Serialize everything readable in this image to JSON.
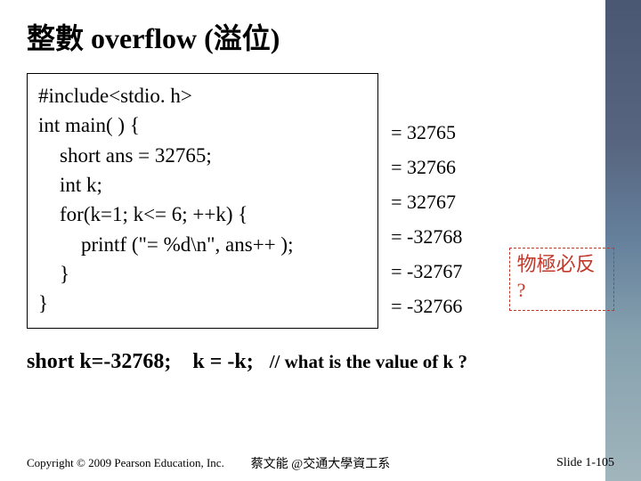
{
  "title": "整數 overflow (溢位)",
  "code": {
    "l1": "#include<stdio. h>",
    "l2": "int main( ) {",
    "l3": "short ans = 32765;",
    "l4": "int k;",
    "l5": "for(k=1; k<= 6; ++k) {",
    "l6": "printf (\"= %d\\n\", ans++ );",
    "l7": "}",
    "l8": "}"
  },
  "outputs": {
    "o1": "= 32765",
    "o2": "= 32766",
    "o3": "= 32767",
    "o4": "= -32768",
    "o5": "= -32767",
    "o6": "= -32766"
  },
  "annotation": {
    "line1": "物極必反",
    "line2": " ?",
    "color": "#c0392b"
  },
  "question": {
    "part1": "short k=-32768;",
    "part2": "k  =  ",
    "neg": "-",
    "part3": "k;",
    "comment": "// what is the value of k ?"
  },
  "footer": {
    "left": "Copyright © 2009 Pearson Education, Inc.",
    "center": "蔡文能 @交通大學資工系",
    "right": "Slide 1-105"
  },
  "colors": {
    "text": "#000000",
    "accent": "#c0392b",
    "bg": "#ffffff"
  }
}
